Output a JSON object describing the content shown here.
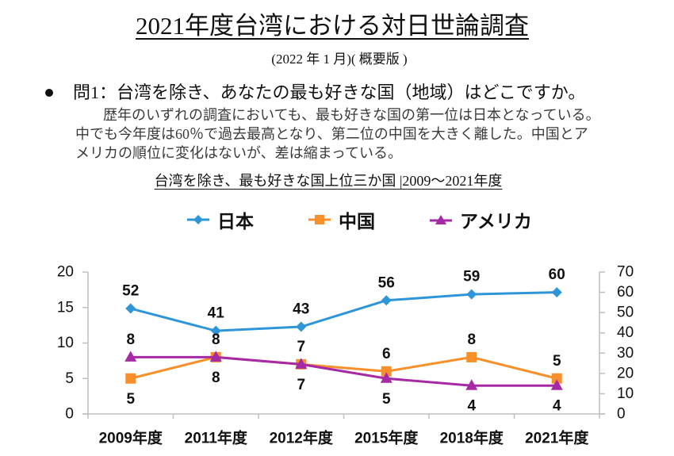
{
  "document": {
    "title": "2021年度台湾における対日世論調査",
    "subtitle": "(2022 年 1 月)( 概要版 )",
    "question": "問1：台湾を除き、あなたの最も好きな国（地域）はどこですか。",
    "body_lines": [
      "歴年のいずれの調査においても、最も好きな国の第一位は日本となっている。",
      "中でも今年度は60％で過去最高となり、第二位の中国を大きく離した。中国とア",
      "メリカの順位に変化はないが、差は縮まっている。"
    ],
    "chart_title": "台湾を除き、最も好きな国上位三か国 |2009～2021年度"
  },
  "chart_data": {
    "type": "line",
    "title": "台湾を除き、最も好きな国上位三か国 |2009～2021年度",
    "xlabel": "",
    "ylabel": "",
    "grid": false,
    "legend_position": "top",
    "categories": [
      "2009年度",
      "2011年度",
      "2012年度",
      "2015年度",
      "2018年度",
      "2021年度"
    ],
    "y_left": {
      "range": [
        0,
        20
      ],
      "ticks": [
        0,
        5,
        10,
        15,
        20
      ]
    },
    "y_right": {
      "range": [
        0,
        70
      ],
      "ticks": [
        0,
        10,
        20,
        30,
        40,
        50,
        60,
        70
      ]
    },
    "series": [
      {
        "name": "日本",
        "values": [
          52,
          41,
          43,
          56,
          59,
          60
        ],
        "axis": "right",
        "marker": "diamond",
        "color": "#2E96D8",
        "label_position": [
          "above",
          "above",
          "above",
          "above",
          "above",
          "above"
        ]
      },
      {
        "name": "中国",
        "values": [
          5,
          8,
          7,
          6,
          8,
          5
        ],
        "axis": "left",
        "marker": "square",
        "color": "#F7902A",
        "label_position": [
          "below",
          "above",
          "above",
          "above",
          "above",
          "above"
        ]
      },
      {
        "name": "アメリカ",
        "values": [
          8,
          8,
          7,
          5,
          4,
          4
        ],
        "axis": "left",
        "marker": "triangle",
        "color": "#A62AA6",
        "label_position": [
          "above",
          "below",
          "below",
          "below",
          "below",
          "below"
        ]
      }
    ]
  }
}
